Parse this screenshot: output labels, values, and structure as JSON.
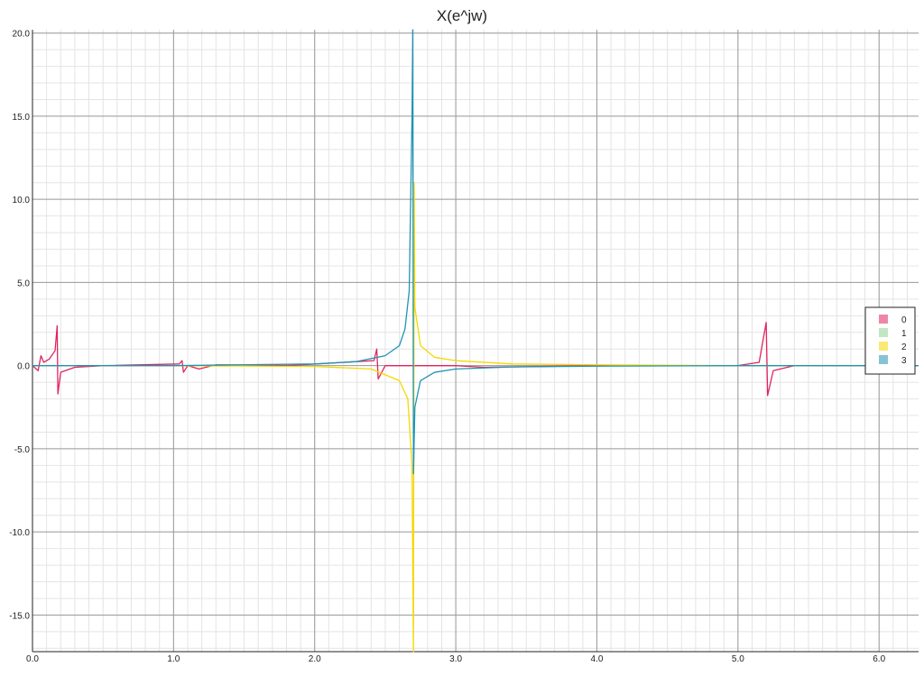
{
  "chart_data": {
    "type": "line",
    "title": "X(e^jw)",
    "xlabel": "",
    "ylabel": "",
    "xlim": [
      0.0,
      6.28
    ],
    "ylim": [
      -17.2,
      20.2
    ],
    "x_ticks": [
      "0.0",
      "1.0",
      "2.0",
      "3.0",
      "4.0",
      "5.0",
      "6.0"
    ],
    "y_ticks": [
      "20.0",
      "15.0",
      "10.0",
      "5.0",
      "0.0",
      "-5.0",
      "-10.0",
      "-15.0"
    ],
    "grid": true,
    "legend_position": "right",
    "series": [
      {
        "name": "0",
        "color": "#e0245e",
        "points": [
          [
            0.0,
            0.0
          ],
          [
            0.04,
            -0.3
          ],
          [
            0.06,
            0.6
          ],
          [
            0.08,
            0.2
          ],
          [
            0.12,
            0.4
          ],
          [
            0.16,
            0.9
          ],
          [
            0.175,
            2.4
          ],
          [
            0.18,
            -1.7
          ],
          [
            0.2,
            -0.4
          ],
          [
            0.3,
            -0.1
          ],
          [
            0.5,
            0.0
          ],
          [
            1.04,
            0.1
          ],
          [
            1.06,
            0.3
          ],
          [
            1.07,
            -0.4
          ],
          [
            1.1,
            0.0
          ],
          [
            1.18,
            -0.2
          ],
          [
            1.3,
            0.05
          ],
          [
            1.8,
            0.0
          ],
          [
            2.42,
            0.3
          ],
          [
            2.44,
            1.0
          ],
          [
            2.45,
            -0.8
          ],
          [
            2.5,
            0.0
          ],
          [
            3.0,
            0.0
          ],
          [
            3.2,
            -0.1
          ],
          [
            4.0,
            0.0
          ],
          [
            5.0,
            0.0
          ],
          [
            5.15,
            0.2
          ],
          [
            5.2,
            2.6
          ],
          [
            5.21,
            -1.8
          ],
          [
            5.25,
            -0.3
          ],
          [
            5.4,
            0.0
          ],
          [
            6.28,
            0.0
          ]
        ]
      },
      {
        "name": "1",
        "color": "#8fd08f",
        "points": []
      },
      {
        "name": "2",
        "color": "#f5d800",
        "points": [
          [
            0.0,
            0.0
          ],
          [
            1.0,
            0.0
          ],
          [
            2.0,
            -0.05
          ],
          [
            2.4,
            -0.2
          ],
          [
            2.6,
            -0.9
          ],
          [
            2.66,
            -2.0
          ],
          [
            2.69,
            -6.0
          ],
          [
            2.7,
            -17.2
          ],
          [
            2.705,
            11.0
          ],
          [
            2.71,
            3.5
          ],
          [
            2.75,
            1.2
          ],
          [
            2.85,
            0.5
          ],
          [
            3.0,
            0.3
          ],
          [
            3.4,
            0.1
          ],
          [
            4.0,
            0.05
          ],
          [
            5.0,
            0.0
          ],
          [
            6.28,
            0.0
          ]
        ]
      },
      {
        "name": "3",
        "color": "#1f94b4",
        "points": [
          [
            0.0,
            0.0
          ],
          [
            1.0,
            0.0
          ],
          [
            2.0,
            0.1
          ],
          [
            2.3,
            0.25
          ],
          [
            2.5,
            0.6
          ],
          [
            2.6,
            1.2
          ],
          [
            2.64,
            2.2
          ],
          [
            2.67,
            4.5
          ],
          [
            2.69,
            15.0
          ],
          [
            2.695,
            20.2
          ],
          [
            2.7,
            -6.5
          ],
          [
            2.71,
            -2.5
          ],
          [
            2.75,
            -0.9
          ],
          [
            2.85,
            -0.4
          ],
          [
            3.0,
            -0.2
          ],
          [
            3.4,
            -0.08
          ],
          [
            4.0,
            -0.03
          ],
          [
            5.0,
            0.0
          ],
          [
            6.28,
            0.0
          ]
        ]
      }
    ]
  }
}
